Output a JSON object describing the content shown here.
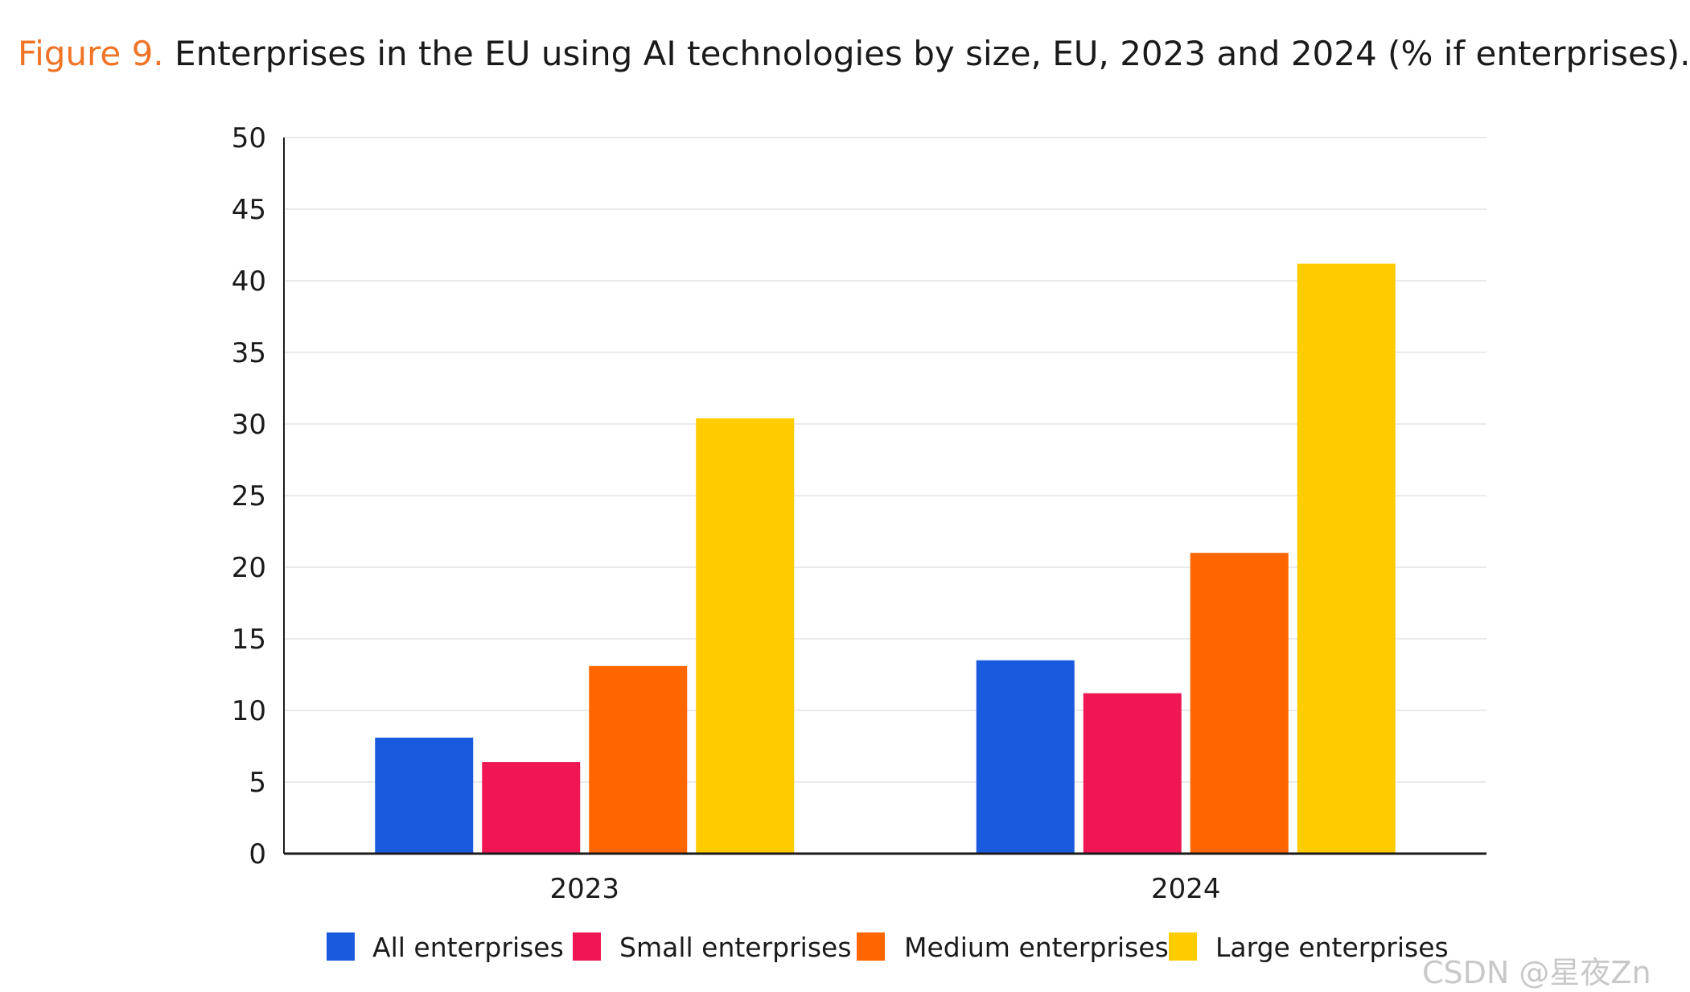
{
  "title": {
    "prefix": "Figure 9.",
    "text": "Enterprises in the EU using AI technologies by size, EU, 2023 and 2024 (% if enterprises)."
  },
  "watermark": "CSDN @星夜Zn",
  "chart_data": {
    "type": "bar",
    "title": "Enterprises in the EU using AI technologies by size, EU, 2023 and 2024 (% if enterprises).",
    "xlabel": "",
    "ylabel": "",
    "ylim": [
      0,
      50
    ],
    "yticks": [
      0,
      5,
      10,
      15,
      20,
      25,
      30,
      35,
      40,
      45,
      50
    ],
    "grid": true,
    "legend_position": "bottom",
    "categories": [
      "2023",
      "2024"
    ],
    "series": [
      {
        "name": "All enterprises",
        "color": "#1a5adf",
        "values": [
          8.1,
          13.5
        ]
      },
      {
        "name": "Small enterprises",
        "color": "#ee1753",
        "values": [
          6.4,
          11.2
        ]
      },
      {
        "name": "Medium enterprises",
        "color": "#ff6600",
        "values": [
          13.1,
          21.0
        ]
      },
      {
        "name": "Large enterprises",
        "color": "#ffcc00",
        "values": [
          30.4,
          41.2
        ]
      }
    ]
  }
}
